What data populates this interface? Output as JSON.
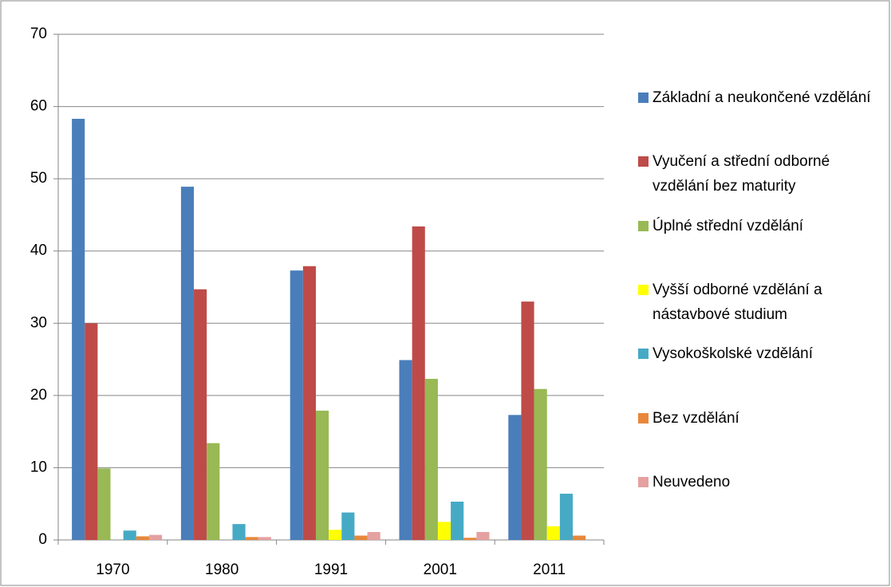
{
  "chart_data": {
    "type": "bar",
    "categories": [
      "1970",
      "1980",
      "1991",
      "2001",
      "2011"
    ],
    "series": [
      {
        "name": "Základní a neukončené vzdělání",
        "color": "#4a7ebb",
        "values": [
          58.3,
          48.9,
          37.3,
          24.9,
          17.3
        ]
      },
      {
        "name": "Vyučení a střední odborné vzdělání bez maturity",
        "color": "#be4b48",
        "values": [
          30.0,
          34.7,
          37.9,
          43.4,
          33.0
        ]
      },
      {
        "name": "Úplné střední vzdělání",
        "color": "#98b954",
        "values": [
          9.9,
          13.4,
          17.9,
          22.3,
          20.9
        ]
      },
      {
        "name": "Vyšší odborné vzdělání a nástavbové studium",
        "color": "#ffff00",
        "values": [
          0,
          0,
          1.4,
          2.5,
          1.9
        ]
      },
      {
        "name": "Vysokoškolské vzdělání",
        "color": "#46aac5",
        "values": [
          1.3,
          2.2,
          3.8,
          5.3,
          6.4
        ]
      },
      {
        "name": "Bez vzdělání",
        "color": "#e8873a",
        "values": [
          0.5,
          0.4,
          0.6,
          0.3,
          0.6
        ]
      },
      {
        "name": "Neuvedeno",
        "color": "#e5a0a0",
        "values": [
          0.7,
          0.4,
          1.1,
          1.1,
          0
        ]
      }
    ],
    "ylim": [
      0,
      70
    ],
    "yticks": [
      0,
      10,
      20,
      30,
      40,
      50,
      60,
      70
    ],
    "grid": true,
    "legend": "right"
  }
}
